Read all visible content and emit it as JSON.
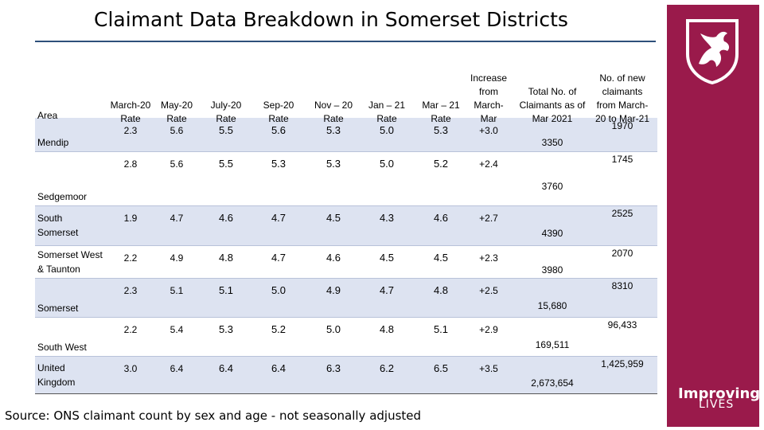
{
  "title": "Claimant Data Breakdown in Somerset Districts",
  "brand": {
    "line1": "Improving",
    "line2": "LIVES"
  },
  "source": "Source: ONS claimant count by sex and age - not seasonally adjusted",
  "table": {
    "headers": [
      "Area",
      "March-20\nRate",
      "May-20\nRate",
      "July-20\nRate",
      "Sep-20\nRate",
      "Nov – 20\nRate",
      "Jan – 21\nRate",
      "Mar – 21\nRate",
      "Increase\nfrom\nMarch-\nMar",
      "Total No. of\nClaimants as of\nMar 2021",
      "No. of new\nclaimants\nfrom March-\n20 to Mar-21"
    ],
    "rows": [
      {
        "area": "Mendip",
        "values": [
          "2.3",
          "5.6",
          "5.5",
          "5.6",
          "5.3",
          "5.0",
          "5.3",
          "+3.0",
          "3350",
          "1970"
        ]
      },
      {
        "area": "Sedgemoor",
        "values": [
          "2.8",
          "5.6",
          "5.5",
          "5.3",
          "5.3",
          "5.0",
          "5.2",
          "+2.4",
          "3760",
          "1745"
        ]
      },
      {
        "area": "South\nSomerset",
        "values": [
          "1.9",
          "4.7",
          "4.6",
          "4.7",
          "4.5",
          "4.3",
          "4.6",
          "+2.7",
          "4390",
          "2525"
        ]
      },
      {
        "area": "Somerset West\n& Taunton",
        "values": [
          "2.2",
          "4.9",
          "4.8",
          "4.7",
          "4.6",
          "4.5",
          "4.5",
          "+2.3",
          "3980",
          "2070"
        ]
      },
      {
        "area": "Somerset",
        "values": [
          "2.3",
          "5.1",
          "5.1",
          "5.0",
          "4.9",
          "4.7",
          "4.8",
          "+2.5",
          "15,680",
          "8310"
        ]
      },
      {
        "area": "South West",
        "values": [
          "2.2",
          "5.4",
          "5.3",
          "5.2",
          "5.0",
          "4.8",
          "5.1",
          "+2.9",
          "169,511",
          "96,433"
        ]
      },
      {
        "area": "United\nKingdom",
        "values": [
          "3.0",
          "6.4",
          "6.4",
          "6.4",
          "6.3",
          "6.2",
          "6.5",
          "+3.5",
          "2,673,654",
          "1,425,959"
        ]
      }
    ]
  },
  "colors": {
    "stripe": "#dde3f1",
    "panel": "#9a1a4b",
    "rule": "#2e4f7a"
  },
  "icons": {
    "crest": "dragon-crest-icon"
  }
}
